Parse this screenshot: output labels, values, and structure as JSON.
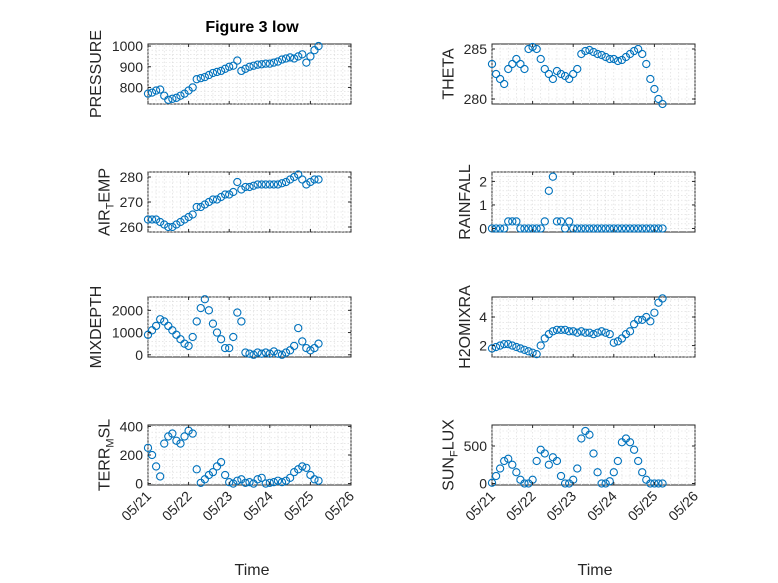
{
  "title": "Figure 3 low",
  "xlabel": "Time",
  "colors": {
    "series": "#0072bd",
    "axes": "#262626",
    "grid": "#d9d9d9"
  },
  "chart_data": [
    {
      "type": "scatter",
      "name": "PRESSURE",
      "ylabel": "PRESSURE",
      "ylabel_sub": "",
      "ylabel_tail": "",
      "xlim": [
        0,
        5
      ],
      "ylim": [
        720,
        1010
      ],
      "yticks": [
        800,
        900,
        1000
      ],
      "grid": true,
      "xticks": [
        "05/21",
        "05/22",
        "05/23",
        "05/24",
        "05/25",
        "05/26"
      ],
      "x": [
        0,
        0.1,
        0.2,
        0.3,
        0.4,
        0.5,
        0.6,
        0.7,
        0.8,
        0.9,
        1,
        1.1,
        1.2,
        1.3,
        1.4,
        1.5,
        1.6,
        1.7,
        1.8,
        1.9,
        2,
        2.1,
        2.2,
        2.3,
        2.4,
        2.5,
        2.6,
        2.7,
        2.8,
        2.9,
        3,
        3.1,
        3.2,
        3.3,
        3.4,
        3.5,
        3.6,
        3.7,
        3.8,
        3.9,
        4,
        4.1,
        4.2
      ],
      "y": [
        770,
        775,
        785,
        790,
        760,
        740,
        745,
        750,
        760,
        770,
        785,
        800,
        840,
        845,
        850,
        860,
        870,
        875,
        880,
        890,
        900,
        905,
        930,
        880,
        890,
        900,
        905,
        910,
        912,
        915,
        915,
        920,
        925,
        935,
        940,
        945,
        940,
        950,
        960,
        920,
        950,
        980,
        1000
      ]
    },
    {
      "type": "scatter",
      "name": "THETA",
      "ylabel": "THETA",
      "ylabel_sub": "",
      "ylabel_tail": "",
      "xlim": [
        0,
        5
      ],
      "ylim": [
        279.5,
        285.5
      ],
      "yticks": [
        280,
        285
      ],
      "grid": true,
      "xticks": [
        "05/21",
        "05/22",
        "05/23",
        "05/24",
        "05/25",
        "05/26"
      ],
      "x": [
        0,
        0.1,
        0.2,
        0.3,
        0.4,
        0.5,
        0.6,
        0.7,
        0.8,
        0.9,
        1,
        1.1,
        1.2,
        1.3,
        1.4,
        1.5,
        1.6,
        1.7,
        1.8,
        1.9,
        2,
        2.1,
        2.2,
        2.3,
        2.4,
        2.5,
        2.6,
        2.7,
        2.8,
        2.9,
        3,
        3.1,
        3.2,
        3.3,
        3.4,
        3.5,
        3.6,
        3.7,
        3.8,
        3.9,
        4,
        4.1,
        4.2
      ],
      "y": [
        283.5,
        282.5,
        282,
        281.5,
        283,
        283.5,
        284,
        283.5,
        283,
        285,
        285.2,
        285,
        284,
        283,
        282.5,
        282,
        282.8,
        282.5,
        282.3,
        282,
        282.5,
        283,
        284.5,
        284.8,
        284.9,
        284.7,
        284.5,
        284.4,
        284.2,
        284,
        284,
        283.8,
        283.9,
        284.2,
        284.5,
        284.8,
        285,
        284.5,
        283.5,
        282,
        281,
        280,
        279.5
      ]
    },
    {
      "type": "scatter",
      "name": "AIR_TEMP",
      "ylabel": "AIR",
      "ylabel_sub": "T",
      "ylabel_tail": "EMP",
      "xlim": [
        0,
        5
      ],
      "ylim": [
        258,
        282
      ],
      "yticks": [
        260,
        270,
        280
      ],
      "grid": true,
      "xticks": [
        "05/21",
        "05/22",
        "05/23",
        "05/24",
        "05/25",
        "05/26"
      ],
      "x": [
        0,
        0.1,
        0.2,
        0.3,
        0.4,
        0.5,
        0.6,
        0.7,
        0.8,
        0.9,
        1,
        1.1,
        1.2,
        1.3,
        1.4,
        1.5,
        1.6,
        1.7,
        1.8,
        1.9,
        2,
        2.1,
        2.2,
        2.3,
        2.4,
        2.5,
        2.6,
        2.7,
        2.8,
        2.9,
        3,
        3.1,
        3.2,
        3.3,
        3.4,
        3.5,
        3.6,
        3.7,
        3.8,
        3.9,
        4,
        4.1,
        4.2
      ],
      "y": [
        263,
        263,
        263,
        262,
        261,
        260,
        260,
        261,
        262,
        263,
        264,
        265,
        268,
        268,
        269,
        270,
        271,
        271,
        272,
        273,
        273,
        274,
        278,
        275,
        276,
        276,
        276.5,
        277,
        277,
        277,
        277,
        277,
        277,
        277.5,
        278,
        279,
        280,
        281,
        279,
        277,
        278,
        279,
        279
      ]
    },
    {
      "type": "scatter",
      "name": "RAINFALL",
      "ylabel": "RAINFALL",
      "ylabel_sub": "",
      "ylabel_tail": "",
      "xlim": [
        0,
        5
      ],
      "ylim": [
        -0.15,
        2.4
      ],
      "yticks": [
        0,
        1,
        2
      ],
      "grid": true,
      "xticks": [
        "05/21",
        "05/22",
        "05/23",
        "05/24",
        "05/25",
        "05/26"
      ],
      "x": [
        0,
        0.1,
        0.2,
        0.3,
        0.4,
        0.5,
        0.6,
        0.7,
        0.8,
        0.9,
        1,
        1.1,
        1.2,
        1.3,
        1.4,
        1.5,
        1.6,
        1.7,
        1.8,
        1.9,
        2,
        2.1,
        2.2,
        2.3,
        2.4,
        2.5,
        2.6,
        2.7,
        2.8,
        2.9,
        3,
        3.1,
        3.2,
        3.3,
        3.4,
        3.5,
        3.6,
        3.7,
        3.8,
        3.9,
        4,
        4.1,
        4.2
      ],
      "y": [
        0,
        0,
        0,
        0,
        0.3,
        0.3,
        0.3,
        0,
        0,
        0,
        0,
        0,
        0,
        0.3,
        1.6,
        2.2,
        0.3,
        0.3,
        0,
        0.3,
        0,
        0,
        0,
        0,
        0,
        0,
        0,
        0,
        0,
        0,
        0,
        0,
        0,
        0,
        0,
        0,
        0,
        0,
        0,
        0,
        0,
        0,
        0
      ]
    },
    {
      "type": "scatter",
      "name": "MIXDEPTH",
      "ylabel": "MIXDEPTH",
      "ylabel_sub": "",
      "ylabel_tail": "",
      "xlim": [
        0,
        5
      ],
      "ylim": [
        -100,
        2600
      ],
      "yticks": [
        0,
        1000,
        2000
      ],
      "grid": true,
      "xticks": [
        "05/21",
        "05/22",
        "05/23",
        "05/24",
        "05/25",
        "05/26"
      ],
      "x": [
        0,
        0.1,
        0.2,
        0.3,
        0.4,
        0.5,
        0.6,
        0.7,
        0.8,
        0.9,
        1,
        1.1,
        1.2,
        1.3,
        1.4,
        1.5,
        1.6,
        1.7,
        1.8,
        1.9,
        2,
        2.1,
        2.2,
        2.3,
        2.4,
        2.5,
        2.6,
        2.7,
        2.8,
        2.9,
        3,
        3.1,
        3.2,
        3.3,
        3.4,
        3.5,
        3.6,
        3.7,
        3.8,
        3.9,
        4,
        4.1,
        4.2
      ],
      "y": [
        900,
        1100,
        1300,
        1600,
        1500,
        1300,
        1100,
        900,
        700,
        500,
        400,
        800,
        1500,
        2100,
        2500,
        2000,
        1400,
        1000,
        700,
        300,
        300,
        800,
        1900,
        1500,
        100,
        50,
        0,
        100,
        50,
        100,
        50,
        150,
        50,
        0,
        100,
        200,
        400,
        1200,
        600,
        300,
        200,
        300,
        500
      ]
    },
    {
      "type": "scatter",
      "name": "H2OMIXRA",
      "ylabel": "H2OMIXRA",
      "ylabel_sub": "",
      "ylabel_tail": "",
      "xlim": [
        0,
        5
      ],
      "ylim": [
        1.2,
        5.4
      ],
      "yticks": [
        2,
        4
      ],
      "grid": true,
      "xticks": [
        "05/21",
        "05/22",
        "05/23",
        "05/24",
        "05/25",
        "05/26"
      ],
      "x": [
        0,
        0.1,
        0.2,
        0.3,
        0.4,
        0.5,
        0.6,
        0.7,
        0.8,
        0.9,
        1,
        1.1,
        1.2,
        1.3,
        1.4,
        1.5,
        1.6,
        1.7,
        1.8,
        1.9,
        2,
        2.1,
        2.2,
        2.3,
        2.4,
        2.5,
        2.6,
        2.7,
        2.8,
        2.9,
        3,
        3.1,
        3.2,
        3.3,
        3.4,
        3.5,
        3.6,
        3.7,
        3.8,
        3.9,
        4,
        4.1,
        4.2
      ],
      "y": [
        1.8,
        1.9,
        2,
        2.1,
        2.1,
        2,
        1.9,
        1.8,
        1.7,
        1.6,
        1.5,
        1.4,
        2,
        2.5,
        2.8,
        3,
        3.1,
        3.1,
        3.1,
        3,
        3,
        2.9,
        3,
        2.9,
        2.9,
        2.8,
        2.9,
        3,
        2.9,
        2.8,
        2.2,
        2.3,
        2.5,
        2.8,
        3,
        3.5,
        3.8,
        3.8,
        4,
        3.7,
        4.3,
        5,
        5.3
      ]
    },
    {
      "type": "scatter",
      "name": "TERR_MSL",
      "ylabel": "TERR",
      "ylabel_sub": "M",
      "ylabel_tail": "SL",
      "xlim": [
        0,
        5
      ],
      "ylim": [
        -10,
        410
      ],
      "yticks": [
        0,
        200,
        400
      ],
      "grid": true,
      "xticks": [
        "05/21",
        "05/22",
        "05/23",
        "05/24",
        "05/25",
        "05/26"
      ],
      "x": [
        0,
        0.1,
        0.2,
        0.3,
        0.4,
        0.5,
        0.6,
        0.7,
        0.8,
        0.9,
        1,
        1.1,
        1.2,
        1.3,
        1.4,
        1.5,
        1.6,
        1.7,
        1.8,
        1.9,
        2,
        2.1,
        2.2,
        2.3,
        2.4,
        2.5,
        2.6,
        2.7,
        2.8,
        2.9,
        3,
        3.1,
        3.2,
        3.3,
        3.4,
        3.5,
        3.6,
        3.7,
        3.8,
        3.9,
        4,
        4.1,
        4.2
      ],
      "y": [
        250,
        200,
        120,
        50,
        280,
        330,
        350,
        300,
        280,
        330,
        370,
        350,
        100,
        5,
        30,
        60,
        80,
        120,
        150,
        60,
        10,
        0,
        20,
        30,
        5,
        10,
        0,
        30,
        40,
        0,
        5,
        10,
        20,
        10,
        20,
        40,
        80,
        100,
        120,
        110,
        60,
        30,
        20
      ]
    },
    {
      "type": "scatter",
      "name": "SUN_FLUX",
      "ylabel": "SUN",
      "ylabel_sub": "F",
      "ylabel_tail": "LUX",
      "xlim": [
        0,
        5
      ],
      "ylim": [
        -20,
        780
      ],
      "yticks": [
        0,
        500
      ],
      "grid": true,
      "xticks": [
        "05/21",
        "05/22",
        "05/23",
        "05/24",
        "05/25",
        "05/26"
      ],
      "x": [
        0,
        0.1,
        0.2,
        0.3,
        0.4,
        0.5,
        0.6,
        0.7,
        0.8,
        0.9,
        1,
        1.1,
        1.2,
        1.3,
        1.4,
        1.5,
        1.6,
        1.7,
        1.8,
        1.9,
        2,
        2.1,
        2.2,
        2.3,
        2.4,
        2.5,
        2.6,
        2.7,
        2.8,
        2.9,
        3,
        3.1,
        3.2,
        3.3,
        3.4,
        3.5,
        3.6,
        3.7,
        3.8,
        3.9,
        4,
        4.1,
        4.2
      ],
      "y": [
        10,
        100,
        200,
        300,
        330,
        250,
        150,
        50,
        0,
        0,
        50,
        300,
        450,
        400,
        250,
        350,
        300,
        100,
        0,
        0,
        50,
        200,
        600,
        700,
        650,
        400,
        150,
        0,
        0,
        30,
        150,
        300,
        550,
        600,
        550,
        450,
        300,
        150,
        50,
        0,
        0,
        0,
        0
      ]
    }
  ]
}
